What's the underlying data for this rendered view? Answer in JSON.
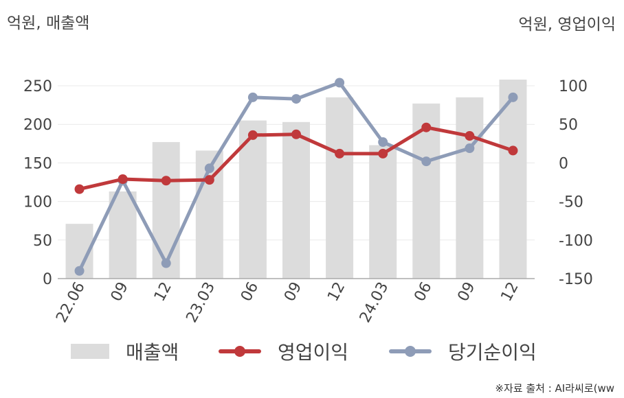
{
  "units": {
    "left": "억원, 매출액",
    "right": "억원, 영업이익"
  },
  "source": "※자료 출처 : AI라씨로(ww",
  "colors": {
    "bar": "#dcdcdc",
    "op_profit": "#c0393b",
    "net_profit": "#8e9cb7",
    "axis": "#aaaaaa",
    "grid": "#e9e9e9"
  },
  "chart_data": {
    "type": "bar",
    "categories": [
      "22.06",
      "09",
      "12",
      "23.03",
      "06",
      "09",
      "12",
      "24.03",
      "06",
      "09",
      "12"
    ],
    "y_left": {
      "label": "억원, 매출액",
      "ylim": [
        0,
        250
      ],
      "ticks": [
        0,
        50,
        100,
        150,
        200,
        250
      ]
    },
    "y_right": {
      "label": "억원, 영업이익",
      "ylim": [
        -150,
        100
      ],
      "ticks": [
        -150,
        -100,
        -50,
        0,
        50,
        100
      ]
    },
    "series": [
      {
        "name": "매출액",
        "type": "bar",
        "axis": "left",
        "values": [
          71,
          113,
          177,
          166,
          205,
          203,
          235,
          173,
          227,
          235,
          258
        ]
      },
      {
        "name": "영업이익",
        "type": "line",
        "axis": "right",
        "values": [
          -34,
          -21,
          -23,
          -22,
          36,
          37,
          12,
          12,
          46,
          35,
          16
        ]
      },
      {
        "name": "당기순이익",
        "type": "line",
        "axis": "right",
        "values": [
          -140,
          -23,
          -130,
          -7,
          85,
          83,
          104,
          27,
          2,
          19,
          85
        ]
      }
    ],
    "grid": true,
    "legend": "bottom"
  }
}
